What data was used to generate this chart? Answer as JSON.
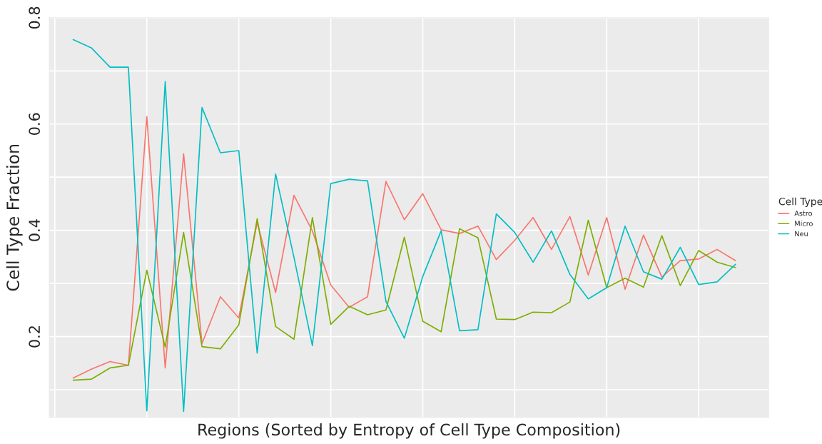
{
  "chart_data": {
    "type": "line",
    "xlabel": "Regions (Sorted by Entropy of Cell Type Composition)",
    "ylabel": "Cell Type Fraction",
    "legend_title": "Cell Type",
    "categories": [
      null,
      null,
      null,
      null,
      null,
      null,
      null,
      null,
      null,
      null,
      null,
      null,
      null,
      null,
      null,
      null,
      null,
      null,
      null,
      null,
      null,
      null,
      null,
      null,
      null,
      null,
      null,
      null,
      null,
      null,
      null,
      null,
      null,
      null,
      null,
      null,
      null
    ],
    "series": [
      {
        "name": "Astro",
        "color": "#f8766d",
        "values": [
          0.122,
          0.139,
          0.153,
          0.146,
          0.614,
          0.141,
          0.544,
          0.187,
          0.275,
          0.235,
          0.415,
          0.283,
          0.466,
          0.399,
          0.297,
          0.255,
          0.275,
          0.492,
          0.42,
          0.469,
          0.401,
          0.394,
          0.408,
          0.345,
          0.381,
          0.424,
          0.364,
          0.426,
          0.316,
          0.424,
          0.289,
          0.391,
          0.312,
          0.343,
          0.346,
          0.364,
          0.343
        ]
      },
      {
        "name": "Micro",
        "color": "#7cae00",
        "values": [
          0.118,
          0.12,
          0.141,
          0.146,
          0.325,
          0.18,
          0.396,
          0.181,
          0.177,
          0.222,
          0.422,
          0.219,
          0.195,
          0.424,
          0.223,
          0.257,
          0.241,
          0.25,
          0.387,
          0.229,
          0.209,
          0.403,
          0.386,
          0.233,
          0.232,
          0.246,
          0.245,
          0.265,
          0.419,
          0.292,
          0.31,
          0.293,
          0.39,
          0.296,
          0.362,
          0.34,
          0.33
        ]
      },
      {
        "name": "Neu",
        "color": "#00bfc4",
        "values": [
          0.759,
          0.743,
          0.707,
          0.707,
          0.06,
          0.68,
          0.059,
          0.631,
          0.546,
          0.55,
          0.169,
          0.506,
          0.349,
          0.183,
          0.488,
          0.496,
          0.493,
          0.266,
          0.197,
          0.313,
          0.399,
          0.211,
          0.213,
          0.431,
          0.396,
          0.34,
          0.399,
          0.317,
          0.271,
          0.292,
          0.408,
          0.322,
          0.308,
          0.368,
          0.298,
          0.303,
          0.336
        ]
      }
    ],
    "ylim": [
      0.048,
      0.8
    ],
    "yticks": [
      {
        "value": 0.1,
        "label": null
      },
      0.2,
      {
        "value": 0.3,
        "label": null
      },
      0.4,
      {
        "value": 0.5,
        "label": null
      },
      0.6,
      {
        "value": 0.7,
        "label": null
      },
      0.8
    ],
    "tick_labels": "y",
    "grid": true,
    "legend": "right",
    "marker": "none",
    "line_style": "solid"
  }
}
